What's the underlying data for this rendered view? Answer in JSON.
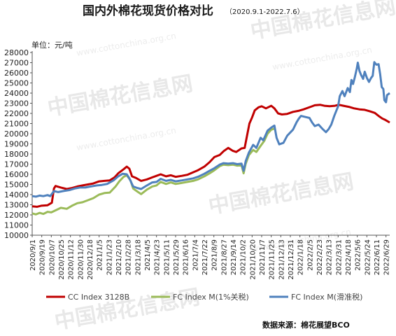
{
  "chart_data": {
    "type": "line",
    "title": "国内外棉花现货价格对比",
    "subtitle": "（2020.9.1-2022.7.6）",
    "ylabel": "单位：元/吨",
    "ylim": [
      10000,
      28000
    ],
    "ytick_step": 1000,
    "grid": false,
    "legend_position": "bottom",
    "source": "数据来源：棉花展望BCO",
    "watermark": {
      "brand": "中国棉花信息网",
      "url": "www.cottonchina.org.cn"
    },
    "x_start": "2020/9/1",
    "x_end": "2022/7/6",
    "xticks": [
      "2020/9/1",
      "2020/9/19",
      "2020/10/7",
      "2020/10/25",
      "2020/11/12",
      "2020/11/30",
      "2020/12/18",
      "2021/1/5",
      "2021/1/23",
      "2021/2/10",
      "2021/2/28",
      "2021/3/18",
      "2021/4/5",
      "2021/4/23",
      "2021/5/11",
      "2021/5/29",
      "2021/6/16",
      "2021/7/4",
      "2021/7/22",
      "2021/8/9",
      "2021/8/27",
      "2021/9/14",
      "2021/10/2",
      "2021/10/20",
      "2021/11/7",
      "2021/11/25",
      "2021/12/13",
      "2021/12/31",
      "2022/1/18",
      "2022/2/5",
      "2022/2/23",
      "2022/3/13",
      "2022/3/31",
      "2022/4/18",
      "2022/5/6",
      "2022/5/24",
      "2022/6/11",
      "2022/6/29"
    ],
    "series": [
      {
        "name": "CC Index 3128B",
        "color": "#c00000",
        "points": [
          [
            "2020/9/1",
            12850
          ],
          [
            "2020/9/10",
            12800
          ],
          [
            "2020/9/18",
            12900
          ],
          [
            "2020/9/30",
            12950
          ],
          [
            "2020/10/8",
            13200
          ],
          [
            "2020/10/12",
            14600
          ],
          [
            "2020/10/15",
            14850
          ],
          [
            "2020/10/25",
            14700
          ],
          [
            "2020/11/5",
            14550
          ],
          [
            "2020/11/15",
            14650
          ],
          [
            "2020/11/25",
            14800
          ],
          [
            "2020/12/5",
            14900
          ],
          [
            "2020/12/15",
            15000
          ],
          [
            "2020/12/25",
            15100
          ],
          [
            "2021/1/5",
            15300
          ],
          [
            "2021/1/15",
            15350
          ],
          [
            "2021/1/25",
            15400
          ],
          [
            "2021/2/3",
            15700
          ],
          [
            "2021/2/10",
            16100
          ],
          [
            "2021/2/20",
            16500
          ],
          [
            "2021/2/26",
            16750
          ],
          [
            "2021/3/3",
            16550
          ],
          [
            "2021/3/8",
            15800
          ],
          [
            "2021/3/15",
            15650
          ],
          [
            "2021/3/25",
            15350
          ],
          [
            "2021/4/5",
            15500
          ],
          [
            "2021/4/15",
            15700
          ],
          [
            "2021/4/23",
            15850
          ],
          [
            "2021/5/1",
            16000
          ],
          [
            "2021/5/11",
            15800
          ],
          [
            "2021/5/20",
            15900
          ],
          [
            "2021/5/29",
            15750
          ],
          [
            "2021/6/10",
            15850
          ],
          [
            "2021/6/20",
            15950
          ],
          [
            "2021/7/1",
            16200
          ],
          [
            "2021/7/10",
            16400
          ],
          [
            "2021/7/22",
            16750
          ],
          [
            "2021/8/1",
            17200
          ],
          [
            "2021/8/10",
            17700
          ],
          [
            "2021/8/20",
            17900
          ],
          [
            "2021/8/28",
            18300
          ],
          [
            "2021/9/5",
            18600
          ],
          [
            "2021/9/14",
            18300
          ],
          [
            "2021/9/20",
            18200
          ],
          [
            "2021/9/30",
            18550
          ],
          [
            "2021/10/6",
            18600
          ],
          [
            "2021/10/10",
            19700
          ],
          [
            "2021/10/15",
            21000
          ],
          [
            "2021/10/20",
            21600
          ],
          [
            "2021/10/25",
            22300
          ],
          [
            "2021/11/1",
            22600
          ],
          [
            "2021/11/7",
            22700
          ],
          [
            "2021/11/15",
            22500
          ],
          [
            "2021/11/25",
            22750
          ],
          [
            "2021/12/1",
            22500
          ],
          [
            "2021/12/8",
            22000
          ],
          [
            "2021/12/15",
            21900
          ],
          [
            "2021/12/25",
            21950
          ],
          [
            "2022/1/5",
            22150
          ],
          [
            "2022/1/15",
            22250
          ],
          [
            "2022/1/25",
            22400
          ],
          [
            "2022/2/7",
            22650
          ],
          [
            "2022/2/15",
            22800
          ],
          [
            "2022/2/25",
            22850
          ],
          [
            "2022/3/5",
            22750
          ],
          [
            "2022/3/15",
            22700
          ],
          [
            "2022/3/25",
            22750
          ],
          [
            "2022/4/1",
            22850
          ],
          [
            "2022/4/10",
            22750
          ],
          [
            "2022/4/20",
            22650
          ],
          [
            "2022/4/30",
            22500
          ],
          [
            "2022/5/10",
            22400
          ],
          [
            "2022/5/20",
            22350
          ],
          [
            "2022/5/30",
            22200
          ],
          [
            "2022/6/8",
            22050
          ],
          [
            "2022/6/15",
            21750
          ],
          [
            "2022/6/22",
            21500
          ],
          [
            "2022/6/28",
            21350
          ],
          [
            "2022/7/6",
            21100
          ]
        ]
      },
      {
        "name": "FC Index M(1%关税)",
        "color": "#9bbb59",
        "points": [
          [
            "2020/9/1",
            12150
          ],
          [
            "2020/9/8",
            12050
          ],
          [
            "2020/9/15",
            12200
          ],
          [
            "2020/9/22",
            12100
          ],
          [
            "2020/9/30",
            12300
          ],
          [
            "2020/10/7",
            12250
          ],
          [
            "2020/10/15",
            12450
          ],
          [
            "2020/10/25",
            12700
          ],
          [
            "2020/11/5",
            12600
          ],
          [
            "2020/11/15",
            12900
          ],
          [
            "2020/11/25",
            13150
          ],
          [
            "2020/12/5",
            13250
          ],
          [
            "2020/12/15",
            13450
          ],
          [
            "2020/12/25",
            13650
          ],
          [
            "2021/1/5",
            14000
          ],
          [
            "2021/1/15",
            14150
          ],
          [
            "2021/1/25",
            14200
          ],
          [
            "2021/2/5",
            14800
          ],
          [
            "2021/2/12",
            15300
          ],
          [
            "2021/2/20",
            15750
          ],
          [
            "2021/2/26",
            15900
          ],
          [
            "2021/3/5",
            15400
          ],
          [
            "2021/3/10",
            14600
          ],
          [
            "2021/3/18",
            14300
          ],
          [
            "2021/3/25",
            14050
          ],
          [
            "2021/4/5",
            14500
          ],
          [
            "2021/4/15",
            14800
          ],
          [
            "2021/4/23",
            14900
          ],
          [
            "2021/5/1",
            15250
          ],
          [
            "2021/5/11",
            15050
          ],
          [
            "2021/5/20",
            15200
          ],
          [
            "2021/5/29",
            15050
          ],
          [
            "2021/6/10",
            15150
          ],
          [
            "2021/6/20",
            15250
          ],
          [
            "2021/7/1",
            15350
          ],
          [
            "2021/7/10",
            15500
          ],
          [
            "2021/7/22",
            15800
          ],
          [
            "2021/8/1",
            16100
          ],
          [
            "2021/8/10",
            16400
          ],
          [
            "2021/8/20",
            16800
          ],
          [
            "2021/8/27",
            16950
          ],
          [
            "2021/9/5",
            16900
          ],
          [
            "2021/9/14",
            16950
          ],
          [
            "2021/9/22",
            16850
          ],
          [
            "2021/9/30",
            16900
          ],
          [
            "2021/10/4",
            16100
          ],
          [
            "2021/10/8",
            17050
          ],
          [
            "2021/10/14",
            17900
          ],
          [
            "2021/10/22",
            18400
          ],
          [
            "2021/10/28",
            18200
          ],
          [
            "2021/11/5",
            18800
          ],
          [
            "2021/11/12",
            19300
          ],
          [
            "2021/11/18",
            20000
          ],
          [
            "2021/11/25",
            20400
          ],
          [
            "2021/12/1",
            20500
          ]
        ]
      },
      {
        "name": "FC Index M(滑准税)",
        "color": "#4f81bd",
        "points": [
          [
            "2020/9/1",
            13850
          ],
          [
            "2020/9/8",
            13800
          ],
          [
            "2020/9/15",
            13900
          ],
          [
            "2020/9/22",
            13850
          ],
          [
            "2020/9/30",
            13950
          ],
          [
            "2020/10/5",
            13850
          ],
          [
            "2020/10/12",
            14350
          ],
          [
            "2020/10/20",
            14250
          ],
          [
            "2020/10/30",
            14350
          ],
          [
            "2020/11/10",
            14450
          ],
          [
            "2020/11/20",
            14600
          ],
          [
            "2020/11/30",
            14700
          ],
          [
            "2020/12/10",
            14700
          ],
          [
            "2020/12/20",
            14800
          ],
          [
            "2021/1/1",
            14900
          ],
          [
            "2021/1/10",
            14950
          ],
          [
            "2021/1/20",
            15050
          ],
          [
            "2021/2/1",
            15400
          ],
          [
            "2021/2/10",
            15800
          ],
          [
            "2021/2/18",
            16050
          ],
          [
            "2021/2/26",
            16000
          ],
          [
            "2021/3/3",
            15600
          ],
          [
            "2021/3/10",
            14800
          ],
          [
            "2021/3/18",
            14650
          ],
          [
            "2021/3/25",
            14550
          ],
          [
            "2021/4/5",
            14900
          ],
          [
            "2021/4/15",
            15200
          ],
          [
            "2021/4/23",
            15250
          ],
          [
            "2021/5/1",
            15550
          ],
          [
            "2021/5/11",
            15350
          ],
          [
            "2021/5/20",
            15450
          ],
          [
            "2021/5/29",
            15300
          ],
          [
            "2021/6/10",
            15400
          ],
          [
            "2021/6/20",
            15500
          ],
          [
            "2021/7/1",
            15600
          ],
          [
            "2021/7/10",
            15750
          ],
          [
            "2021/7/22",
            16050
          ],
          [
            "2021/8/1",
            16350
          ],
          [
            "2021/8/10",
            16600
          ],
          [
            "2021/8/20",
            16950
          ],
          [
            "2021/8/27",
            17100
          ],
          [
            "2021/9/5",
            17050
          ],
          [
            "2021/9/14",
            17100
          ],
          [
            "2021/9/22",
            17000
          ],
          [
            "2021/9/30",
            17050
          ],
          [
            "2021/10/4",
            16350
          ],
          [
            "2021/10/8",
            17300
          ],
          [
            "2021/10/14",
            18150
          ],
          [
            "2021/10/22",
            18900
          ],
          [
            "2021/10/28",
            18600
          ],
          [
            "2021/11/5",
            19600
          ],
          [
            "2021/11/10",
            19350
          ],
          [
            "2021/11/18",
            20300
          ],
          [
            "2021/11/25",
            20600
          ],
          [
            "2021/12/1",
            20800
          ],
          [
            "2021/12/5",
            19600
          ],
          [
            "2021/12/10",
            18950
          ],
          [
            "2021/12/18",
            19100
          ],
          [
            "2021/12/25",
            19800
          ],
          [
            "2022/1/5",
            20400
          ],
          [
            "2022/1/12",
            21150
          ],
          [
            "2022/1/16",
            21500
          ],
          [
            "2022/1/20",
            21750
          ],
          [
            "2022/1/28",
            21650
          ],
          [
            "2022/2/5",
            21550
          ],
          [
            "2022/2/10",
            21100
          ],
          [
            "2022/2/15",
            20750
          ],
          [
            "2022/2/22",
            20900
          ],
          [
            "2022/3/1",
            20500
          ],
          [
            "2022/3/8",
            20150
          ],
          [
            "2022/3/13",
            20450
          ],
          [
            "2022/3/18",
            20900
          ],
          [
            "2022/3/24",
            21800
          ],
          [
            "2022/3/31",
            22700
          ],
          [
            "2022/4/3",
            23700
          ],
          [
            "2022/4/8",
            24200
          ],
          [
            "2022/4/12",
            23700
          ],
          [
            "2022/4/18",
            24500
          ],
          [
            "2022/4/22",
            24100
          ],
          [
            "2022/4/25",
            25300
          ],
          [
            "2022/4/28",
            24900
          ],
          [
            "2022/5/1",
            25500
          ],
          [
            "2022/5/5",
            26400
          ],
          [
            "2022/5/7",
            27000
          ],
          [
            "2022/5/10",
            26200
          ],
          [
            "2022/5/13",
            25800
          ],
          [
            "2022/5/17",
            25400
          ],
          [
            "2022/5/20",
            26100
          ],
          [
            "2022/5/24",
            25500
          ],
          [
            "2022/5/28",
            25100
          ],
          [
            "2022/6/1",
            25500
          ],
          [
            "2022/6/4",
            25700
          ],
          [
            "2022/6/7",
            27050
          ],
          [
            "2022/6/11",
            26800
          ],
          [
            "2022/6/15",
            26850
          ],
          [
            "2022/6/18",
            25900
          ],
          [
            "2022/6/21",
            24600
          ],
          [
            "2022/6/24",
            24400
          ],
          [
            "2022/6/26",
            23300
          ],
          [
            "2022/6/29",
            23100
          ],
          [
            "2022/7/1",
            23800
          ],
          [
            "2022/7/6",
            24000
          ]
        ]
      }
    ]
  }
}
